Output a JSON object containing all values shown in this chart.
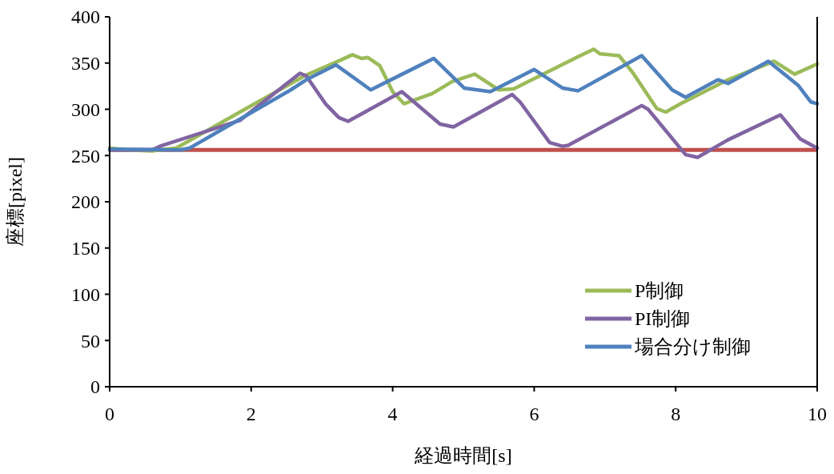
{
  "chart_data": {
    "type": "line",
    "xlabel": "経過時間[s]",
    "ylabel": "座標[pixel]",
    "xlim": [
      0,
      10
    ],
    "xticks": [
      0,
      2,
      4,
      6,
      8,
      10
    ],
    "ylim": [
      0,
      400
    ],
    "yticks": [
      0,
      50,
      100,
      150,
      200,
      250,
      300,
      350,
      400
    ],
    "grid": false,
    "legend": "bottom right",
    "marker": "none",
    "line_style": "solid",
    "series": [
      {
        "name": "P制御",
        "color": "#9bbb59",
        "x": [
          0,
          0.26,
          0.6,
          0.94,
          1.84,
          2.75,
          3.2,
          3.43,
          3.56,
          3.65,
          3.82,
          4.0,
          4.16,
          4.56,
          4.84,
          5.16,
          5.5,
          5.71,
          6.6,
          6.84,
          6.93,
          7.2,
          7.39,
          7.73,
          7.86,
          8.07,
          8.74,
          9.39,
          9.68,
          10
        ],
        "values": [
          258,
          256,
          255,
          258,
          297,
          336,
          351,
          359,
          355,
          356,
          347,
          319,
          306,
          317,
          330,
          338,
          321,
          322,
          356,
          365,
          360,
          358,
          340,
          301,
          297,
          306,
          332,
          352,
          338,
          349
        ]
      },
      {
        "name": "PI制御",
        "color": "#8064a2",
        "x": [
          0,
          0.6,
          0.71,
          1.84,
          2.69,
          2.78,
          3.05,
          3.24,
          3.37,
          4.13,
          4.67,
          4.86,
          5.69,
          5.8,
          6.22,
          6.4,
          6.48,
          7.52,
          7.61,
          8.14,
          8.31,
          8.74,
          9.48,
          9.76,
          10
        ],
        "values": [
          256,
          256,
          260,
          288,
          339,
          336,
          306,
          291,
          287,
          319,
          284,
          281,
          316,
          308,
          264,
          260,
          261,
          304,
          300,
          251,
          248,
          267,
          294,
          268,
          258
        ]
      },
      {
        "name": "場合分け制御",
        "color": "#4f81bd",
        "x": [
          0,
          1.0,
          1.13,
          2.56,
          2.78,
          3.2,
          3.69,
          4.58,
          5.01,
          5.38,
          6.0,
          6.4,
          6.62,
          7.52,
          7.95,
          8.14,
          8.6,
          8.74,
          9.31,
          9.73,
          9.91,
          10
        ],
        "values": [
          257,
          256,
          258,
          321,
          332,
          348,
          321,
          355,
          323,
          319,
          343,
          323,
          320,
          358,
          321,
          313,
          332,
          328,
          352,
          326,
          308,
          306
        ]
      }
    ],
    "ref_lines": [
      {
        "axis": "y",
        "value": 256,
        "color": "#c0504d"
      }
    ]
  }
}
